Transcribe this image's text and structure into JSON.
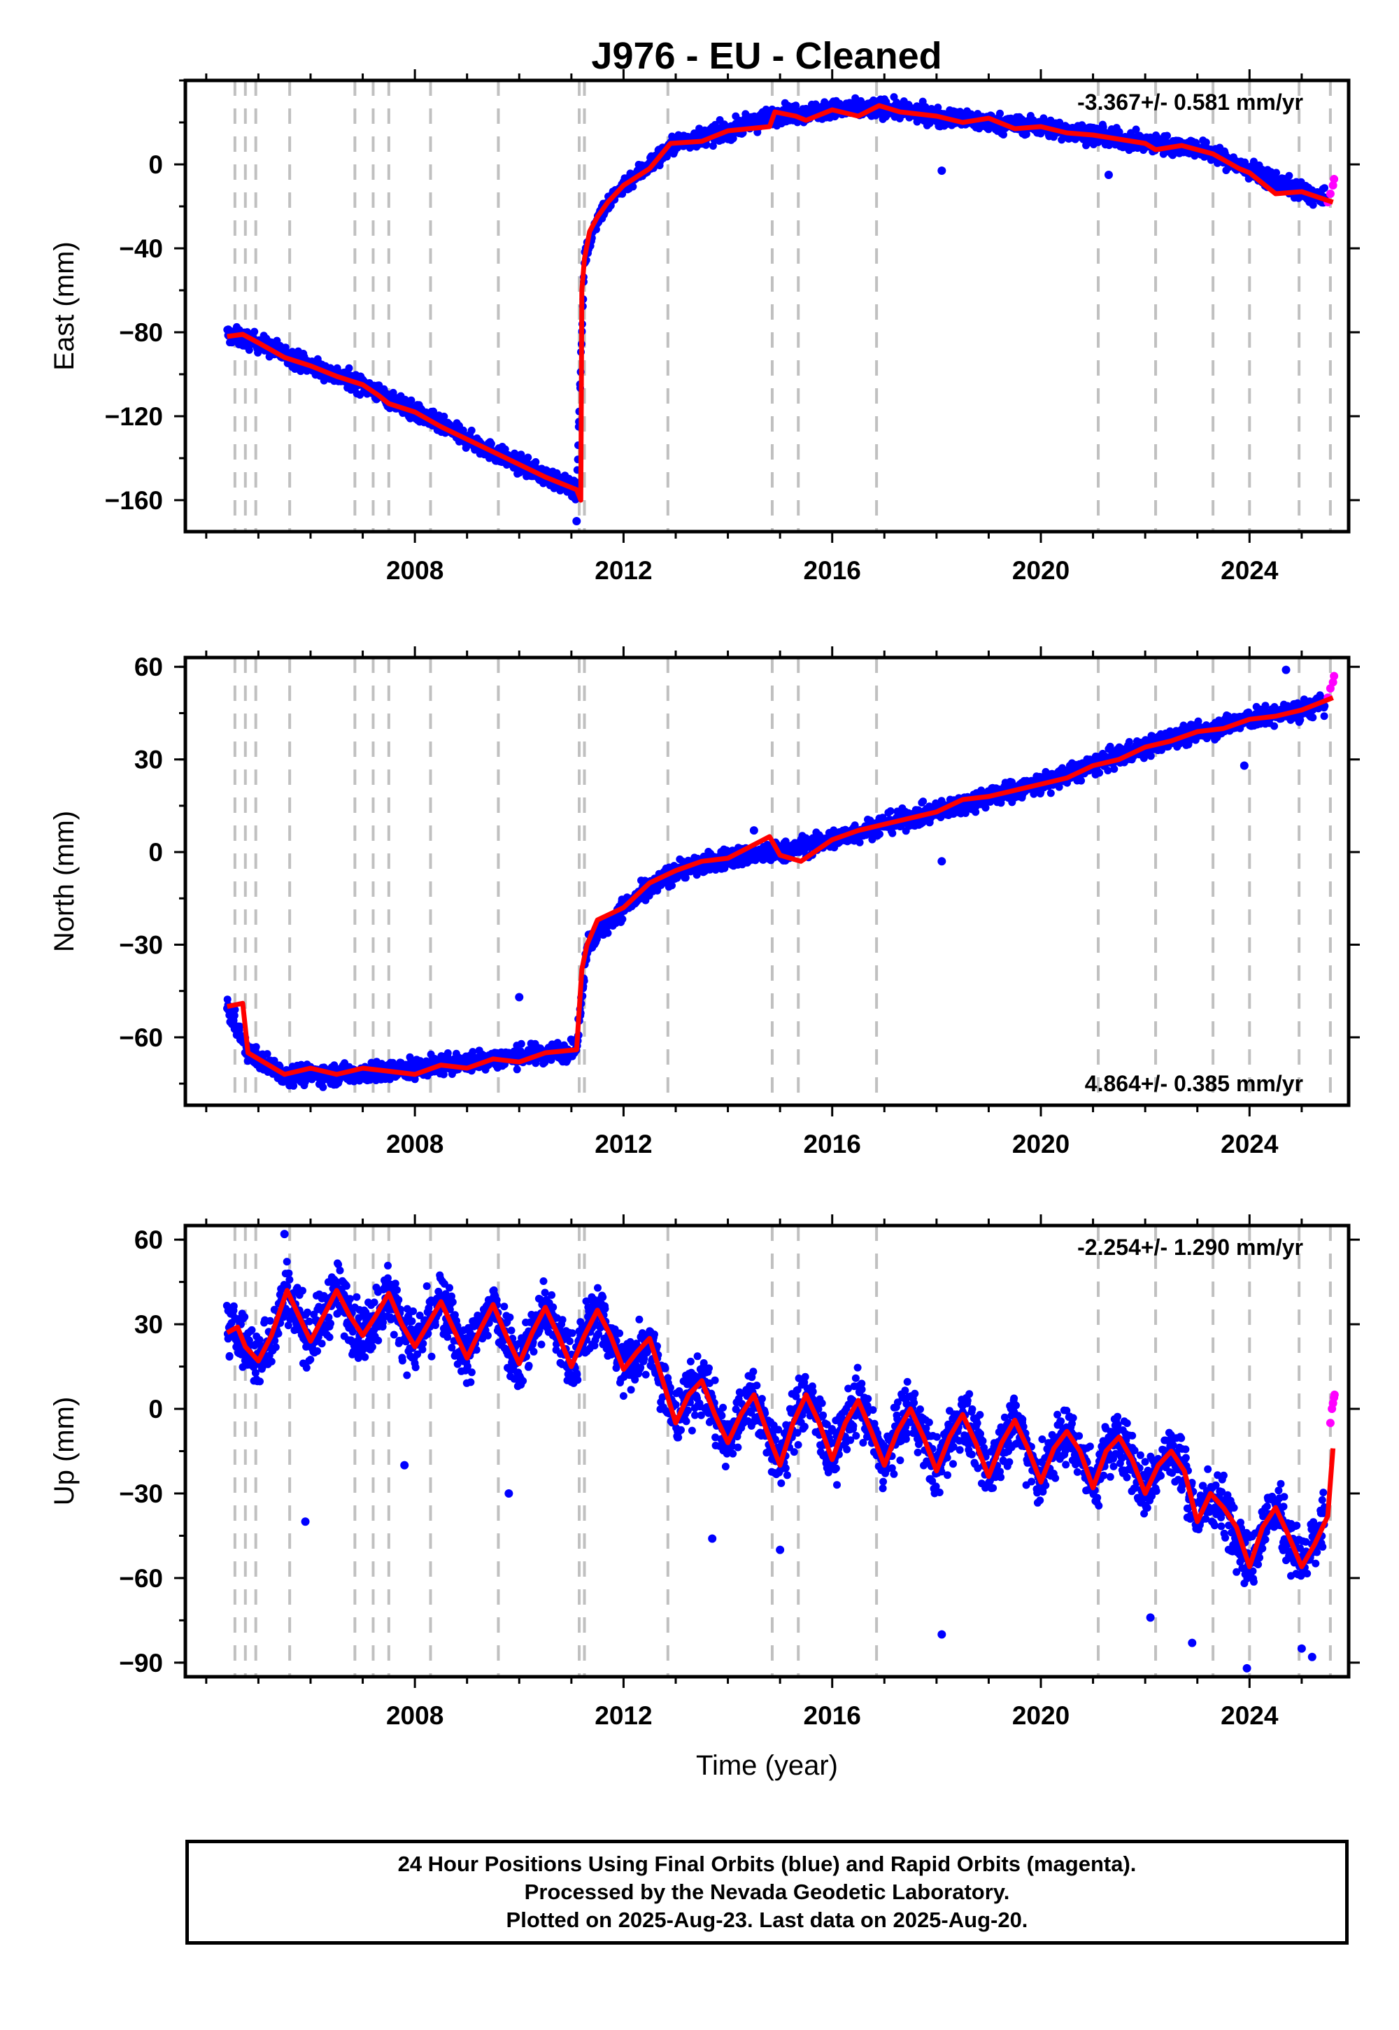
{
  "title": "J976  - EU - Cleaned",
  "colors": {
    "final": "#0000ff",
    "rapid": "#ff00ff",
    "model": "#ff0000",
    "events": "#c0c0c0"
  },
  "events": [
    2004.55,
    2004.75,
    2004.95,
    2005.6,
    2006.85,
    2007.2,
    2007.5,
    2008.3,
    2009.6,
    2011.15,
    2011.25,
    2012.85,
    2014.85,
    2015.35,
    2016.85,
    2021.1,
    2022.2,
    2023.3,
    2024.0,
    2024.95,
    2025.55
  ],
  "footer": {
    "line1": "24 Hour Positions Using Final Orbits (blue) and Rapid Orbits (magenta).",
    "line2": "Processed by the Nevada Geodetic Laboratory.",
    "line3": "Plotted on 2025-Aug-23. Last data on 2025-Aug-20."
  },
  "chart_data": [
    {
      "type": "scatter",
      "name": "east",
      "ylabel": "East (mm)",
      "xlim": [
        2003.6,
        2025.9
      ],
      "ylim": [
        -175,
        40
      ],
      "xticks": [
        2008,
        2012,
        2016,
        2020,
        2024
      ],
      "yticks": [
        -160,
        -120,
        -80,
        -40,
        0
      ],
      "rate_text": "-3.367+/- 0.581 mm/yr",
      "rate_position": "top-right",
      "xaxis_labels": true,
      "model": {
        "x": [
          2004.4,
          2004.7,
          2005.0,
          2005.5,
          2006.0,
          2006.5,
          2007.0,
          2007.3,
          2007.5,
          2008.0,
          2008.5,
          2009.0,
          2009.5,
          2010.0,
          2010.5,
          2011.1,
          2011.18,
          2011.2,
          2011.25,
          2011.35,
          2011.5,
          2011.7,
          2012.0,
          2012.5,
          2012.9,
          2013.5,
          2014.0,
          2014.8,
          2014.9,
          2015.3,
          2015.5,
          2016.0,
          2016.5,
          2016.9,
          2017.3,
          2018.0,
          2018.5,
          2019.0,
          2019.5,
          2020.0,
          2020.5,
          2021.0,
          2021.5,
          2022.0,
          2022.2,
          2022.7,
          2023.3,
          2023.8,
          2024.0,
          2024.5,
          2025.0,
          2025.6
        ],
        "y": [
          -82,
          -81,
          -85,
          -92,
          -96,
          -101,
          -105,
          -110,
          -114,
          -118,
          -125,
          -131,
          -137,
          -143,
          -149,
          -155,
          -160,
          -60,
          -45,
          -32,
          -25,
          -18,
          -10,
          -2,
          10,
          11,
          16,
          18,
          25,
          23,
          21,
          26,
          23,
          28,
          25,
          23,
          20,
          22,
          17,
          18,
          15,
          14,
          12,
          10,
          7,
          9,
          5,
          -2,
          -4,
          -14,
          -13,
          -18
        ]
      },
      "final": {
        "scatter": 4,
        "x": [
          2004.4,
          2005.0,
          2006.0,
          2007.0,
          2008.0,
          2009.0,
          2010.0,
          2011.1,
          2011.25,
          2011.5,
          2012.0,
          2013.0,
          2014.0,
          2015.0,
          2016.0,
          2017.0,
          2018.0,
          2019.0,
          2020.0,
          2021.0,
          2022.0,
          2023.0,
          2024.0,
          2025.0,
          2025.45
        ],
        "y": [
          -81,
          -85,
          -96,
          -105,
          -118,
          -131,
          -143,
          -155,
          -45,
          -25,
          -10,
          10,
          16,
          24,
          26,
          27,
          23,
          20,
          18,
          14,
          10,
          8,
          -3,
          -13,
          -17
        ],
        "outliers_x": [
          2011.1,
          2018.1,
          2021.3
        ],
        "outliers_y": [
          -170,
          -3,
          -5
        ]
      },
      "rapid": {
        "x": [
          2025.5,
          2025.55,
          2025.6,
          2025.62
        ],
        "y": [
          -18,
          -14,
          -10,
          -7
        ]
      }
    },
    {
      "type": "scatter",
      "name": "north",
      "ylabel": "North (mm)",
      "xlim": [
        2003.6,
        2025.9
      ],
      "ylim": [
        -82,
        63
      ],
      "xticks": [
        2008,
        2012,
        2016,
        2020,
        2024
      ],
      "yticks": [
        -60,
        -30,
        0,
        30,
        60
      ],
      "rate_text": "4.864+/- 0.385 mm/yr",
      "rate_position": "bottom-right",
      "xaxis_labels": true,
      "model": {
        "x": [
          2004.4,
          2004.7,
          2004.8,
          2005.0,
          2005.5,
          2006.0,
          2006.5,
          2007.0,
          2007.5,
          2008.0,
          2008.5,
          2009.0,
          2009.5,
          2010.0,
          2010.5,
          2011.1,
          2011.2,
          2011.3,
          2011.5,
          2012.0,
          2012.5,
          2013.0,
          2013.5,
          2014.0,
          2014.8,
          2015.0,
          2015.4,
          2016.0,
          2016.5,
          2017.0,
          2018.0,
          2018.5,
          2019.0,
          2019.5,
          2020.0,
          2020.5,
          2021.0,
          2021.5,
          2022.0,
          2022.5,
          2023.0,
          2023.5,
          2024.0,
          2024.5,
          2025.0,
          2025.6
        ],
        "y": [
          -50,
          -49,
          -65,
          -67,
          -72,
          -70,
          -72,
          -70,
          -71,
          -72,
          -69,
          -70,
          -67,
          -68,
          -65,
          -64,
          -38,
          -30,
          -22,
          -18,
          -10,
          -6,
          -3,
          -2,
          5,
          -1,
          -3,
          4,
          7,
          9,
          13,
          17,
          18,
          20,
          22,
          24,
          28,
          30,
          34,
          36,
          39,
          40,
          43,
          44,
          46,
          50
        ]
      },
      "final": {
        "scatter": 3,
        "x": [
          2004.4,
          2004.8,
          2005.5,
          2006.5,
          2007.5,
          2008.5,
          2009.5,
          2010.5,
          2011.1,
          2011.3,
          2012.0,
          2013.0,
          2014.0,
          2015.0,
          2016.0,
          2017.0,
          2018.0,
          2019.0,
          2020.0,
          2021.0,
          2022.0,
          2023.0,
          2024.0,
          2025.0,
          2025.45
        ],
        "y": [
          -50,
          -65,
          -72,
          -72,
          -71,
          -69,
          -67,
          -65,
          -64,
          -30,
          -18,
          -6,
          -2,
          0,
          4,
          9,
          13,
          18,
          22,
          28,
          34,
          39,
          43,
          46,
          48
        ],
        "outliers_x": [
          2010.0,
          2014.5,
          2018.1,
          2023.9,
          2024.7
        ],
        "outliers_y": [
          -47,
          7,
          -3,
          28,
          59
        ]
      },
      "rapid": {
        "x": [
          2025.5,
          2025.55,
          2025.6,
          2025.62
        ],
        "y": [
          50,
          53,
          55,
          57
        ]
      }
    },
    {
      "type": "scatter",
      "name": "up",
      "ylabel": "Up (mm)",
      "xlabel": "Time (year)",
      "xlim": [
        2003.6,
        2025.9
      ],
      "ylim": [
        -95,
        65
      ],
      "xticks": [
        2008,
        2012,
        2016,
        2020,
        2024
      ],
      "yticks": [
        -90,
        -60,
        -30,
        0,
        30,
        60
      ],
      "rate_text": "-2.254+/- 1.290 mm/yr",
      "rate_position": "top-right",
      "xaxis_labels": true,
      "model": {
        "x": [
          2004.4,
          2004.6,
          2004.75,
          2005.0,
          2005.25,
          2005.55,
          2005.75,
          2006.0,
          2006.25,
          2006.5,
          2006.75,
          2007.0,
          2007.25,
          2007.5,
          2007.75,
          2008.0,
          2008.25,
          2008.5,
          2008.75,
          2009.0,
          2009.25,
          2009.5,
          2009.75,
          2010.0,
          2010.25,
          2010.5,
          2010.75,
          2011.0,
          2011.25,
          2011.5,
          2011.75,
          2012.0,
          2012.25,
          2012.5,
          2012.75,
          2013.0,
          2013.25,
          2013.5,
          2013.75,
          2014.0,
          2014.25,
          2014.5,
          2014.75,
          2015.0,
          2015.25,
          2015.5,
          2015.75,
          2016.0,
          2016.25,
          2016.5,
          2016.75,
          2017.0,
          2017.25,
          2017.5,
          2017.75,
          2018.0,
          2018.25,
          2018.5,
          2018.75,
          2019.0,
          2019.25,
          2019.5,
          2019.75,
          2020.0,
          2020.25,
          2020.5,
          2020.75,
          2021.0,
          2021.25,
          2021.5,
          2021.75,
          2022.0,
          2022.25,
          2022.5,
          2022.75,
          2023.0,
          2023.25,
          2023.5,
          2023.75,
          2024.0,
          2024.25,
          2024.5,
          2024.75,
          2025.0,
          2025.25,
          2025.5,
          2025.6
        ],
        "y": [
          27,
          29,
          22,
          17,
          26,
          42,
          34,
          24,
          33,
          42,
          33,
          26,
          33,
          41,
          30,
          22,
          30,
          38,
          28,
          18,
          28,
          37,
          26,
          16,
          27,
          36,
          26,
          15,
          26,
          35,
          26,
          14,
          20,
          25,
          10,
          -5,
          5,
          10,
          -2,
          -12,
          -2,
          5,
          -8,
          -20,
          -5,
          5,
          -5,
          -18,
          -5,
          3,
          -8,
          -20,
          -8,
          0,
          -10,
          -22,
          -10,
          -2,
          -12,
          -24,
          -12,
          -4,
          -14,
          -26,
          -14,
          -8,
          -15,
          -28,
          -15,
          -10,
          -18,
          -30,
          -20,
          -15,
          -22,
          -40,
          -30,
          -35,
          -42,
          -56,
          -42,
          -35,
          -45,
          -56,
          -48,
          -38,
          -14
        ]
      },
      "final": {
        "scatter": 10,
        "x": [
          2004.4,
          2004.6,
          2004.75,
          2005.0,
          2005.25,
          2005.55,
          2005.75,
          2006.0,
          2006.25,
          2006.5,
          2006.75,
          2007.0,
          2007.25,
          2007.5,
          2007.75,
          2008.0,
          2008.25,
          2008.5,
          2008.75,
          2009.0,
          2009.25,
          2009.5,
          2009.75,
          2010.0,
          2010.25,
          2010.5,
          2010.75,
          2011.0,
          2011.25,
          2011.5,
          2011.75,
          2012.0,
          2012.25,
          2012.5,
          2012.75,
          2013.0,
          2013.25,
          2013.5,
          2013.75,
          2014.0,
          2014.25,
          2014.5,
          2014.75,
          2015.0,
          2015.25,
          2015.5,
          2015.75,
          2016.0,
          2016.25,
          2016.5,
          2016.75,
          2017.0,
          2017.25,
          2017.5,
          2017.75,
          2018.0,
          2018.25,
          2018.5,
          2018.75,
          2019.0,
          2019.25,
          2019.5,
          2019.75,
          2020.0,
          2020.25,
          2020.5,
          2020.75,
          2021.0,
          2021.25,
          2021.5,
          2021.75,
          2022.0,
          2022.25,
          2022.5,
          2022.75,
          2023.0,
          2023.25,
          2023.5,
          2023.75,
          2024.0,
          2024.25,
          2024.5,
          2024.75,
          2025.0,
          2025.25,
          2025.45
        ],
        "y": [
          27,
          29,
          22,
          17,
          26,
          42,
          34,
          24,
          33,
          42,
          33,
          26,
          33,
          41,
          30,
          22,
          30,
          38,
          28,
          18,
          28,
          37,
          26,
          16,
          27,
          36,
          26,
          15,
          26,
          35,
          26,
          14,
          20,
          25,
          10,
          -5,
          5,
          10,
          -2,
          -12,
          -2,
          5,
          -8,
          -20,
          -5,
          5,
          -5,
          -18,
          -5,
          3,
          -8,
          -20,
          -8,
          0,
          -10,
          -22,
          -10,
          -2,
          -12,
          -24,
          -12,
          -4,
          -14,
          -26,
          -14,
          -8,
          -15,
          -28,
          -15,
          -10,
          -18,
          -30,
          -20,
          -15,
          -22,
          -40,
          -30,
          -35,
          -42,
          -56,
          -42,
          -35,
          -45,
          -56,
          -48,
          -38
        ],
        "outliers_x": [
          2005.5,
          2005.9,
          2007.8,
          2009.8,
          2013.7,
          2015.0,
          2018.1,
          2022.1,
          2022.9,
          2023.95,
          2025.0,
          2025.2
        ],
        "outliers_y": [
          62,
          -40,
          -20,
          -30,
          -46,
          -50,
          -80,
          -74,
          -83,
          -92,
          -85,
          -88
        ]
      },
      "rapid": {
        "x": [
          2025.55,
          2025.58,
          2025.6,
          2025.62,
          2025.63
        ],
        "y": [
          -5,
          0,
          2,
          4,
          5
        ]
      }
    }
  ]
}
